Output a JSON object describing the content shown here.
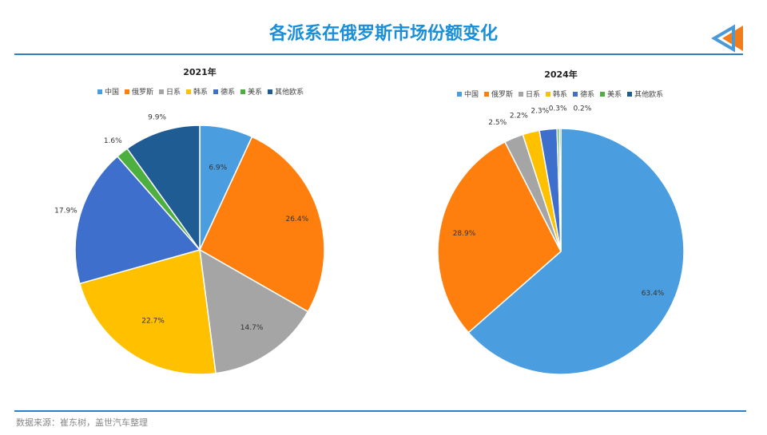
{
  "page": {
    "title": "各派系在俄罗斯市场份额变化",
    "source": "数据来源：崔东树，盖世汽车整理"
  },
  "colors": {
    "title": "#1a8fd8",
    "rule": "#2d7fc7",
    "deco_orange": "#f07d1a",
    "deco_blue": "#4a9ad6"
  },
  "chart_data": [
    {
      "type": "pie",
      "title": "2021年",
      "categories": [
        "中国",
        "俄罗斯",
        "日系",
        "韩系",
        "德系",
        "美系",
        "其他欧系"
      ],
      "values": [
        6.9,
        26.4,
        14.7,
        22.7,
        17.9,
        1.6,
        9.9
      ],
      "labels": [
        "6.9%",
        "26.4%",
        "14.7%",
        "22.7%",
        "17.9%",
        "1.6%",
        "9.9%"
      ],
      "colors": [
        "#4a9ee0",
        "#ff7f0e",
        "#a5a5a5",
        "#ffc000",
        "#3f6fcc",
        "#4caf3f",
        "#1f5c94"
      ],
      "legend_position": "top"
    },
    {
      "type": "pie",
      "title": "2024年",
      "categories": [
        "中国",
        "俄罗斯",
        "日系",
        "韩系",
        "德系",
        "美系",
        "其他欧系"
      ],
      "values": [
        63.4,
        28.9,
        2.5,
        2.2,
        2.3,
        0.3,
        0.2
      ],
      "labels": [
        "63.4%",
        "28.9%",
        "2.5%",
        "2.2%",
        "2.3%",
        "0.3%",
        "0.2%"
      ],
      "colors": [
        "#4a9ee0",
        "#ff7f0e",
        "#a5a5a5",
        "#ffc000",
        "#3f6fcc",
        "#4caf3f",
        "#1f5c94"
      ],
      "legend_position": "top"
    }
  ]
}
